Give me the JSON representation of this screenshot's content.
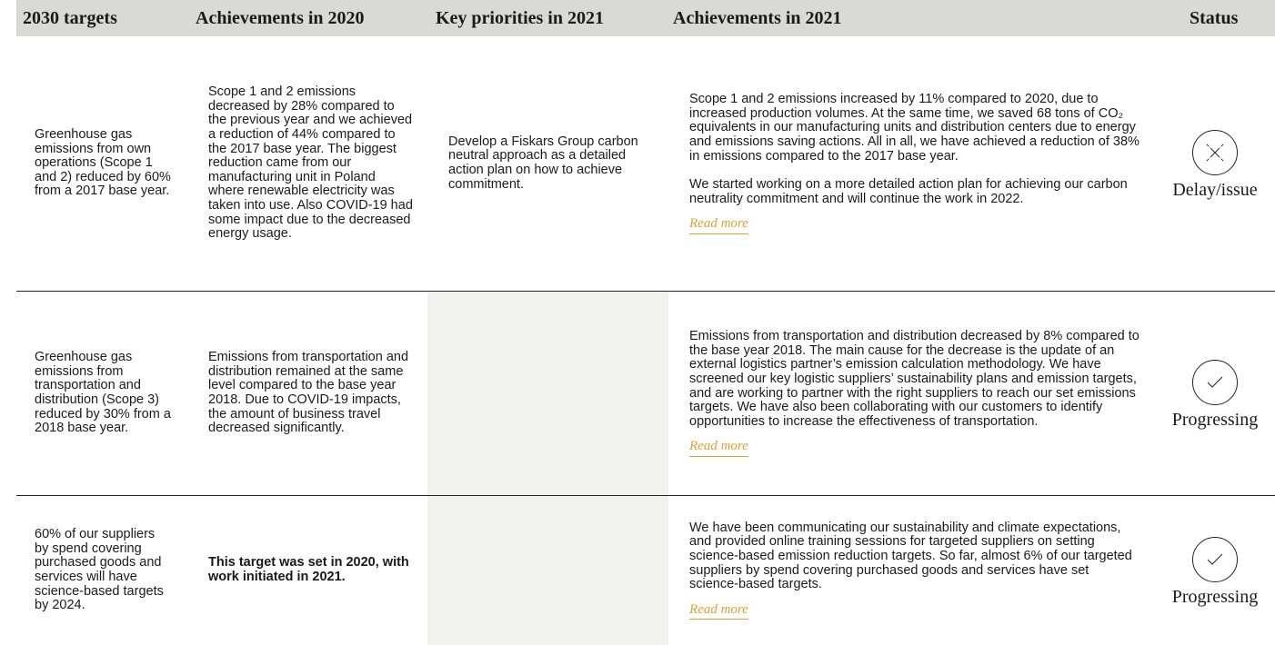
{
  "header": [
    "2030 targets",
    "Achievements in 2020",
    "Key priorities in 2021",
    "Achievements in 2021",
    "Status"
  ],
  "rows": [
    {
      "target": "Greenhouse gas emissions from own operations (Scope 1 and 2) reduced by 60% from a 2017 base year.",
      "achievements_2020": "Scope 1 and 2 emissions decreased by 28% compared to the previous year and we achieved a reduction of 44% compared to the 2017 base year. The biggest reduction came from our manufacturing unit in Poland where renewable electricity was taken into use. Also COVID-19 had some impact due to the decreased energy usage.",
      "priority_2021": "Develop a Fiskars Group carbon neutral approach as a detailed action plan on how to achieve commitment.",
      "achievements_2021": [
        "Scope 1 and 2 emissions increased by 11% compared to 2020, due to increased production volumes. At the same time, we saved 68 tons of CO₂ equivalents in our manufacturing units and distribution centers due to energy and emissions saving actions. All in all, we have achieved a reduction of 38% in emissions compared to the 2017 base year.",
        "We started working on a more detailed action plan for achieving our carbon neutrality commitment and will continue the work in 2022."
      ],
      "link": "Read more",
      "status": "Delay/issue"
    },
    {
      "target": "Greenhouse gas emissions from transportation and distribution (Scope 3) reduced by 30% from a 2018 base year.",
      "achievements_2020": "Emissions from transportation and distribution remained at the same level compared to the base year 2018. Due to COVID-19 impacts, the amount of business travel decreased significantly.",
      "achievements_2021": [
        "Emissions from transportation and distribution decreased by 8% compared to the base year 2018. The main cause for the decrease is the update of an external logistics partner’s emission calculation methodology. We have screened our key logistic suppliers’ sustainability plans and emission targets, and are working to partner with the right suppliers to reach our set emissions targets. We have also been collaborating with our customers to identify opportunities to increase the effectiveness of transportation."
      ],
      "link": "Read more",
      "status": "Progressing"
    },
    {
      "target": "60% of our suppliers by spend covering purchased goods and services will have science-based targets by 2024.",
      "achievements_2020": "This target was set in 2020, with work initiated in 2021.",
      "achievements_2021": [
        "We have been communicating our sustainability and climate expectations, and provided online training sessions for targeted suppliers on setting science-based emission reduction targets. So far, almost 6% of our targeted suppliers by spend covering purchased goods and services have set science-based targets."
      ],
      "link": "Read more",
      "status": "Progressing"
    }
  ]
}
